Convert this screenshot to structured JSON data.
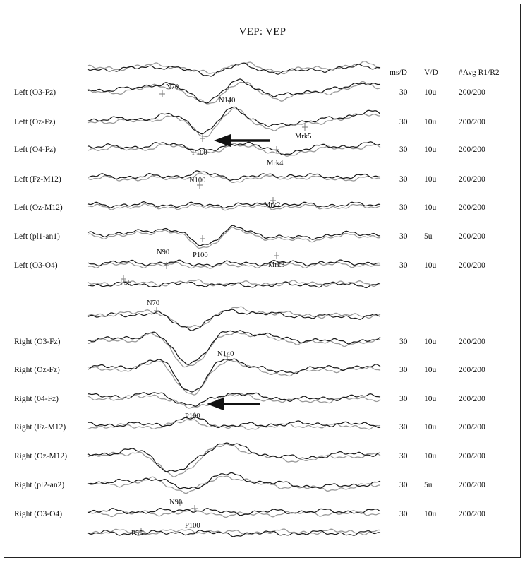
{
  "title": "VEP:  VEP",
  "columns": {
    "msd": "ms/D",
    "vd": "V/D",
    "avg": "#Avg  R1/R2"
  },
  "chart_data": {
    "type": "line",
    "title": "VEP:  VEP",
    "series_colors": {
      "R1": "#1a1a1a",
      "R2": "#9a9a9a"
    },
    "arrows": 2,
    "channels": [
      {
        "label": "Left  (O3-Fz)",
        "msd": "30",
        "vd": "10u",
        "avg": "200/200"
      },
      {
        "label": "Left  (Oz-Fz)",
        "msd": "30",
        "vd": "10u",
        "avg": "200/200"
      },
      {
        "label": "Left  (O4-Fz)",
        "msd": "30",
        "vd": "10u",
        "avg": "200/200"
      },
      {
        "label": "Left  (Fz-M12)",
        "msd": "30",
        "vd": "10u",
        "avg": "200/200"
      },
      {
        "label": "Left  (Oz-M12)",
        "msd": "30",
        "vd": "10u",
        "avg": "200/200"
      },
      {
        "label": "Left  (pl1-an1)",
        "msd": "30",
        "vd": "5u",
        "avg": "200/200"
      },
      {
        "label": "Left  (O3-O4)",
        "msd": "30",
        "vd": "10u",
        "avg": "200/200"
      },
      {
        "label": "Right  (O3-Fz)",
        "msd": "30",
        "vd": "10u",
        "avg": "200/200"
      },
      {
        "label": "Right  (Oz-Fz)",
        "msd": "30",
        "vd": "10u",
        "avg": "200/200"
      },
      {
        "label": "Right  (04-Fz)",
        "msd": "30",
        "vd": "10u",
        "avg": "200/200"
      },
      {
        "label": "Right  (Fz-M12)",
        "msd": "30",
        "vd": "10u",
        "avg": "200/200"
      },
      {
        "label": "Right  (Oz-M12)",
        "msd": "30",
        "vd": "10u",
        "avg": "200/200"
      },
      {
        "label": "Right  (pl2-an2)",
        "msd": "30",
        "vd": "5u",
        "avg": "200/200"
      },
      {
        "label": "Right  (O3-O4)",
        "msd": "30",
        "vd": "10u",
        "avg": "200/200"
      }
    ],
    "peak_labels": [
      "N70",
      "N140",
      "P100",
      "Mrk5",
      "Mrk4",
      "N100",
      "Mrk2",
      "P100",
      "N90",
      "Mrk3",
      "P55",
      "N70",
      "N140",
      "P100",
      "N90",
      "P100",
      "P55"
    ]
  }
}
